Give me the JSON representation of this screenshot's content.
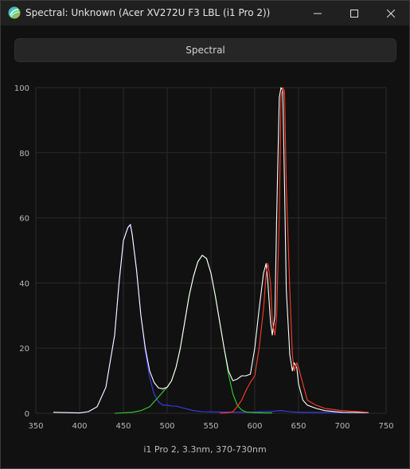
{
  "window": {
    "title": "Spectral: Unknown (Acer XV272U F3 LBL (i1 Pro 2))",
    "controls": {
      "minimize": "minimize",
      "maximize": "maximize",
      "close": "close"
    }
  },
  "tab": {
    "label": "Spectral"
  },
  "caption": "i1 Pro 2, 3.3nm, 370-730nm",
  "colors": {
    "background": "#111111",
    "grid": "#2a2a2a",
    "blue": "#3c3cff",
    "green": "#2fd22f",
    "red": "#ff3c28",
    "white": "#ffffff"
  },
  "chart_data": {
    "type": "line",
    "xlim": [
      350,
      750
    ],
    "ylim": [
      0,
      100
    ],
    "xticks": [
      350,
      400,
      450,
      500,
      550,
      600,
      650,
      700,
      750
    ],
    "yticks": [
      0,
      20,
      40,
      60,
      80,
      100
    ],
    "grid": true,
    "series": [
      {
        "color": "white",
        "x": [
          370,
          400,
          410,
          420,
          430,
          440,
          445,
          450,
          455,
          458,
          460,
          465,
          470,
          475,
          480,
          485,
          490,
          495,
          500,
          505,
          510,
          515,
          520,
          525,
          530,
          535,
          540,
          545,
          550,
          555,
          560,
          565,
          570,
          575,
          580,
          585,
          590,
          595,
          600,
          605,
          610,
          613,
          615,
          618,
          620,
          623,
          625,
          628,
          630,
          632,
          634,
          636,
          640,
          643,
          645,
          648,
          650,
          655,
          660,
          670,
          680,
          700,
          730
        ],
        "y": [
          0.3,
          0.1,
          0.5,
          2,
          8,
          24,
          40,
          53,
          57,
          58,
          55,
          44,
          30,
          20,
          13,
          9.5,
          7.8,
          7.5,
          8,
          10,
          14,
          20,
          28,
          36,
          42,
          46.5,
          48.5,
          47.5,
          43,
          36,
          28,
          20,
          13,
          10,
          10.5,
          11.5,
          11.5,
          12,
          20,
          32,
          43,
          46,
          40,
          28,
          24,
          30,
          60,
          97,
          100,
          99,
          70,
          38,
          18,
          13,
          15.5,
          14,
          9,
          4,
          2.5,
          1.5,
          0.8,
          0.3,
          0.2
        ]
      },
      {
        "color": "blue",
        "x": [
          370,
          400,
          410,
          420,
          430,
          440,
          445,
          450,
          455,
          458,
          460,
          465,
          470,
          475,
          480,
          485,
          490,
          495,
          500,
          505,
          510,
          520,
          530,
          540,
          560,
          580,
          600,
          620,
          630,
          640,
          650,
          700,
          730
        ],
        "y": [
          0.3,
          0.1,
          0.5,
          2,
          8,
          24,
          40,
          53,
          57,
          57.5,
          55,
          44,
          30,
          19,
          11,
          6,
          3.5,
          2.5,
          2.5,
          2.2,
          2.2,
          1.5,
          0.8,
          0.5,
          0.4,
          0.3,
          0.4,
          0.6,
          0.8,
          0.5,
          0.3,
          0.2,
          0.2
        ]
      },
      {
        "color": "green",
        "x": [
          440,
          460,
          470,
          480,
          485,
          490,
          495,
          500,
          505,
          510,
          515,
          520,
          525,
          530,
          535,
          540,
          545,
          550,
          555,
          560,
          565,
          570,
          575,
          580,
          585,
          590,
          600,
          610,
          620
        ],
        "y": [
          0,
          0.3,
          0.8,
          2,
          3.5,
          5,
          6.5,
          8,
          10,
          14,
          20,
          28,
          36,
          42,
          46.5,
          48.5,
          47.5,
          43,
          36,
          28,
          20,
          12,
          6,
          2.5,
          1,
          0.4,
          0.2,
          0.1,
          0.1
        ]
      },
      {
        "color": "red",
        "x": [
          560,
          570,
          575,
          580,
          585,
          590,
          595,
          600,
          605,
          610,
          613,
          615,
          618,
          620,
          623,
          625,
          628,
          630,
          632,
          634,
          636,
          640,
          643,
          645,
          648,
          650,
          655,
          660,
          670,
          680,
          700,
          730
        ],
        "y": [
          0,
          0.2,
          0.5,
          2,
          4,
          7,
          9.5,
          11.5,
          20,
          32,
          43,
          46,
          40,
          28,
          24,
          30,
          60,
          97,
          100,
          99,
          70,
          38,
          18,
          13,
          15.5,
          14,
          9,
          4,
          2.5,
          1.5,
          0.8,
          0.3
        ]
      }
    ]
  }
}
